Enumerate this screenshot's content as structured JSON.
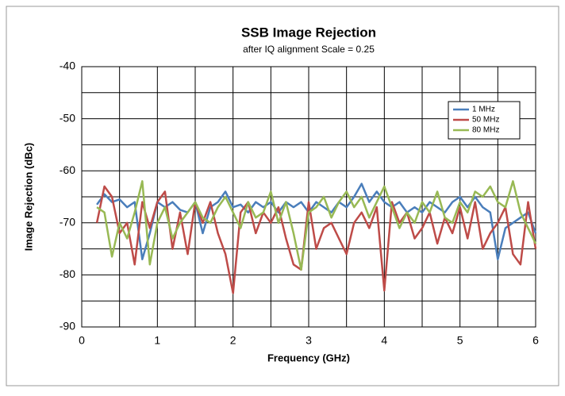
{
  "chart_data": {
    "type": "line",
    "title": "SSB Image Rejection",
    "subtitle": "after IQ alignment   Scale = 0.25",
    "x_label": "Frequency (GHz)",
    "y_label": "Image Rejection (dBc)",
    "x": [
      0.2,
      0.3,
      0.4,
      0.5,
      0.6,
      0.7,
      0.8,
      0.9,
      1.0,
      1.1,
      1.2,
      1.3,
      1.4,
      1.5,
      1.6,
      1.7,
      1.8,
      1.9,
      2.0,
      2.1,
      2.2,
      2.3,
      2.4,
      2.5,
      2.6,
      2.7,
      2.8,
      2.9,
      3.0,
      3.1,
      3.2,
      3.3,
      3.4,
      3.5,
      3.6,
      3.7,
      3.8,
      3.9,
      4.0,
      4.1,
      4.2,
      4.3,
      4.4,
      4.5,
      4.6,
      4.7,
      4.8,
      4.9,
      5.0,
      5.1,
      5.2,
      5.3,
      5.4,
      5.5,
      5.6,
      5.7,
      5.8,
      5.9,
      6.0
    ],
    "series": [
      {
        "name": "1 MHz",
        "color": "#4a7ebb",
        "values": [
          -66.5,
          -64.5,
          -66,
          -65.5,
          -67,
          -66,
          -77,
          -72,
          -66,
          -67,
          -66,
          -67.5,
          -68,
          -66,
          -72,
          -67,
          -66,
          -64,
          -67,
          -66.5,
          -68,
          -66,
          -67,
          -66,
          -68,
          -66,
          -67,
          -66,
          -68,
          -66,
          -67,
          -68,
          -66,
          -67,
          -65,
          -62.5,
          -66,
          -64,
          -66,
          -67,
          -66,
          -68,
          -67,
          -68,
          -66,
          -67,
          -68,
          -66,
          -65,
          -67,
          -65,
          -67,
          -68,
          -77,
          -71,
          -70,
          -69,
          -68,
          -72
        ]
      },
      {
        "name": "50 MHz",
        "color": "#be4b48",
        "values": [
          -70,
          -63,
          -65,
          -72,
          -70,
          -78,
          -66,
          -71,
          -66,
          -64,
          -75,
          -68,
          -76,
          -66,
          -70,
          -66,
          -72,
          -76,
          -83.5,
          -68,
          -66,
          -72,
          -68,
          -70,
          -67,
          -73,
          -78,
          -79,
          -66,
          -75,
          -71,
          -70,
          -73,
          -76,
          -70,
          -68,
          -71,
          -67,
          -83,
          -66,
          -70,
          -68,
          -73,
          -71,
          -68,
          -74,
          -69,
          -72,
          -67,
          -73,
          -66,
          -75,
          -72,
          -70,
          -67,
          -76,
          -78,
          -66,
          -75
        ]
      },
      {
        "name": "80 MHz",
        "color": "#98b954",
        "values": [
          -67,
          -68,
          -76.5,
          -70,
          -73,
          -68,
          -62,
          -78,
          -70,
          -67,
          -73,
          -70,
          -68,
          -66,
          -69,
          -70,
          -67,
          -65,
          -68,
          -71,
          -66,
          -69,
          -68,
          -64,
          -70,
          -66,
          -72,
          -79,
          -68,
          -67,
          -65,
          -69,
          -66,
          -64,
          -67,
          -65,
          -69,
          -66,
          -63,
          -67,
          -71,
          -68,
          -70,
          -66,
          -68,
          -64,
          -69,
          -70,
          -66,
          -68,
          -64,
          -65,
          -63,
          -66,
          -67,
          -62,
          -68,
          -71,
          -74
        ]
      }
    ],
    "xlim": [
      0,
      6
    ],
    "xticks": [
      0,
      1,
      2,
      3,
      4,
      5,
      6
    ],
    "xminor": [
      0.5,
      1.5,
      2.5,
      3.5,
      4.5,
      5.5
    ],
    "ylim": [
      -90,
      -40
    ],
    "yticks": [
      -90,
      -80,
      -70,
      -60,
      -50,
      -40
    ],
    "yminor": [
      -85,
      -75,
      -65,
      -55,
      -45
    ],
    "grid": true,
    "legend": "upper right"
  }
}
